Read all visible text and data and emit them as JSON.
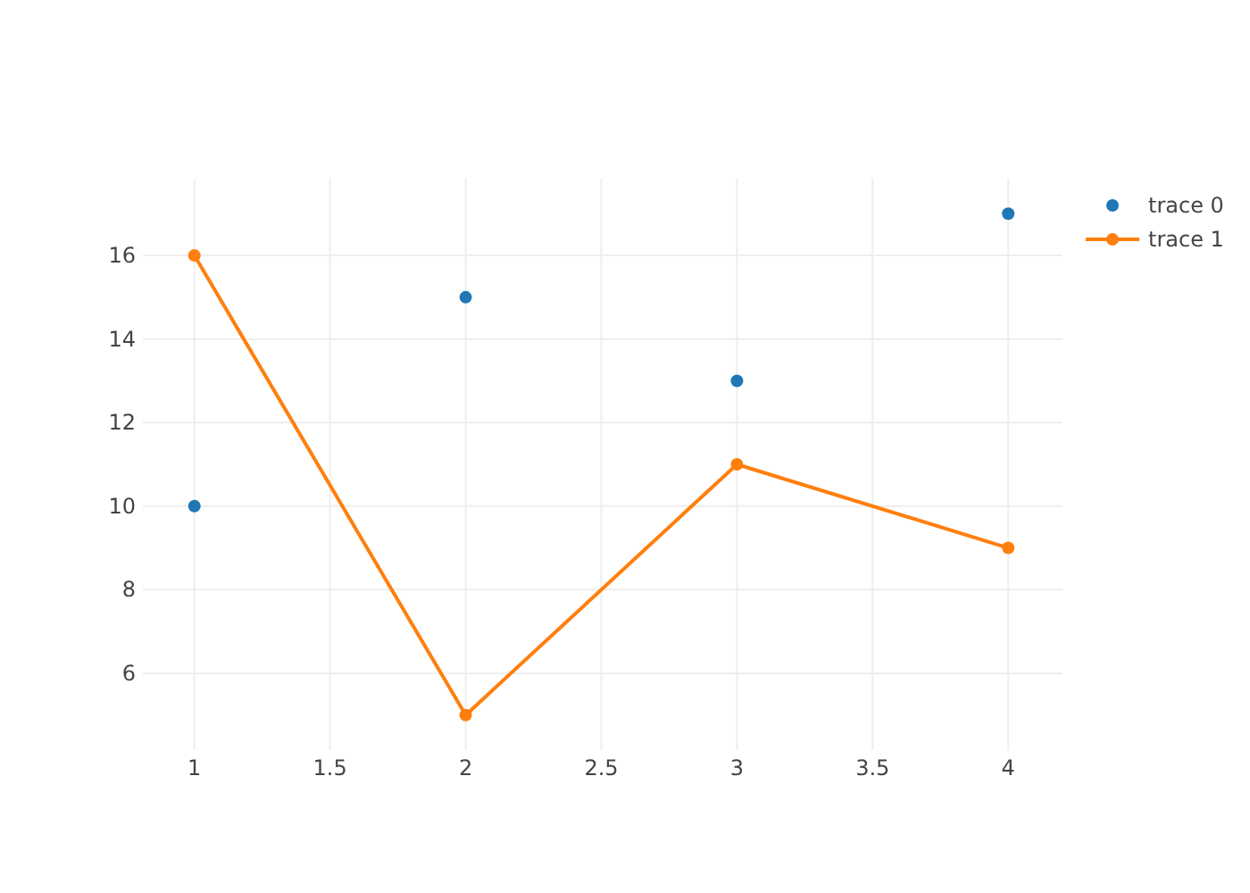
{
  "chart_data": {
    "type": "line",
    "x": [
      1,
      2,
      3,
      4
    ],
    "series": [
      {
        "name": "trace 0",
        "type": "scatter",
        "color": "#1f77b4",
        "values": [
          10,
          15,
          13,
          17
        ]
      },
      {
        "name": "trace 1",
        "color": "#ff7f0e",
        "values": [
          16,
          5,
          11,
          9
        ]
      }
    ],
    "xlim": [
      0.81,
      4.2
    ],
    "xticks": [
      1,
      1.5,
      2,
      2.5,
      3,
      3.5,
      4
    ],
    "ylim": [
      4.16,
      17.84
    ],
    "yticks": [
      6,
      8,
      10,
      12,
      14,
      16
    ],
    "grid": true,
    "legend": "top right",
    "marker": "circle",
    "line_style": "solid"
  }
}
